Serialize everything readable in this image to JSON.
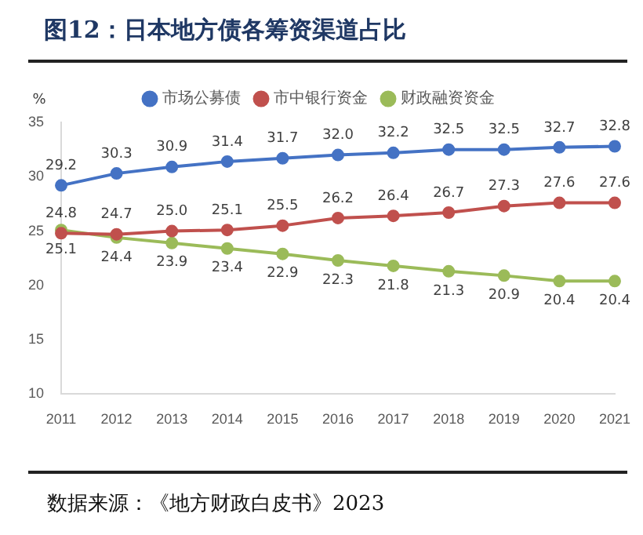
{
  "chart_data": {
    "type": "line",
    "title": "图12：日本地方债各筹资渠道占比",
    "ylabel": "%",
    "categories": [
      "2011",
      "2012",
      "2013",
      "2014",
      "2015",
      "2016",
      "2017",
      "2018",
      "2019",
      "2020",
      "2021"
    ],
    "series": [
      {
        "name": "市场公募债",
        "color": "#4472c4",
        "values": [
          29.2,
          30.3,
          30.9,
          31.4,
          31.7,
          32.0,
          32.2,
          32.5,
          32.5,
          32.7,
          32.8
        ],
        "value_labels": [
          "29.2",
          "30.3",
          "30.9",
          "31.4",
          "31.7",
          "32.0",
          "32.2",
          "32.5",
          "32.5",
          "32.7",
          "32.8"
        ]
      },
      {
        "name": "市中银行资金",
        "color": "#c0504d",
        "values": [
          24.8,
          24.7,
          25.0,
          25.1,
          25.5,
          26.2,
          26.4,
          26.7,
          27.3,
          27.6,
          27.6
        ],
        "value_labels": [
          "24.8",
          "24.7",
          "25.0",
          "25.1",
          "25.5",
          "26.2",
          "26.4",
          "26.7",
          "27.3",
          "27.6",
          "27.6"
        ]
      },
      {
        "name": "财政融资资金",
        "color": "#9bbb59",
        "values": [
          25.1,
          24.4,
          23.9,
          23.4,
          22.9,
          22.3,
          21.8,
          21.3,
          20.9,
          20.4,
          20.4
        ],
        "value_labels": [
          "25.1",
          "24.4",
          "23.9",
          "23.4",
          "22.9",
          "22.3",
          "21.8",
          "21.3",
          "20.9",
          "20.4",
          "20.4"
        ]
      }
    ],
    "ylim": [
      10,
      35
    ],
    "yticks": [
      10,
      15,
      20,
      25,
      30,
      35
    ],
    "grid": false,
    "legend": "top",
    "marker": "circle",
    "line_style": "solid",
    "annotations": [
      "数据来源：《地方财政白皮书》2023"
    ]
  }
}
